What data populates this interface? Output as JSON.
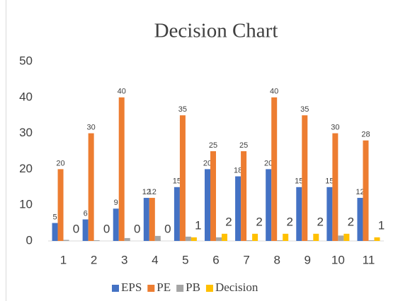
{
  "chart_data": {
    "type": "bar",
    "title": "Decision Chart",
    "categories": [
      "1",
      "2",
      "3",
      "4",
      "5",
      "6",
      "7",
      "8",
      "9",
      "10",
      "11"
    ],
    "series": [
      {
        "name": "EPS",
        "color": "#4472c4",
        "values": [
          5,
          6,
          9,
          12,
          15,
          20,
          18,
          20,
          15,
          15,
          12
        ],
        "labeled": true,
        "label_size": "small"
      },
      {
        "name": "PE",
        "color": "#ed7d31",
        "values": [
          20,
          30,
          40,
          12,
          35,
          25,
          25,
          40,
          35,
          30,
          28
        ],
        "labeled": true,
        "label_size": "small"
      },
      {
        "name": "PB",
        "color": "#a5a5a5",
        "values": [
          0.3,
          0.2,
          0.8,
          1.4,
          1.2,
          1.0,
          0.2,
          0.2,
          0.2,
          1.5,
          0.2
        ],
        "labeled": false
      },
      {
        "name": "Decision",
        "color": "#ffc000",
        "values": [
          0,
          0,
          0,
          0,
          1,
          2,
          2,
          2,
          2,
          2,
          1
        ],
        "labeled": true,
        "label_size": "large"
      }
    ],
    "ylim": [
      0,
      50
    ],
    "yticks": [
      0,
      10,
      20,
      30,
      40,
      50
    ],
    "grid": false,
    "legend": "bottom"
  }
}
